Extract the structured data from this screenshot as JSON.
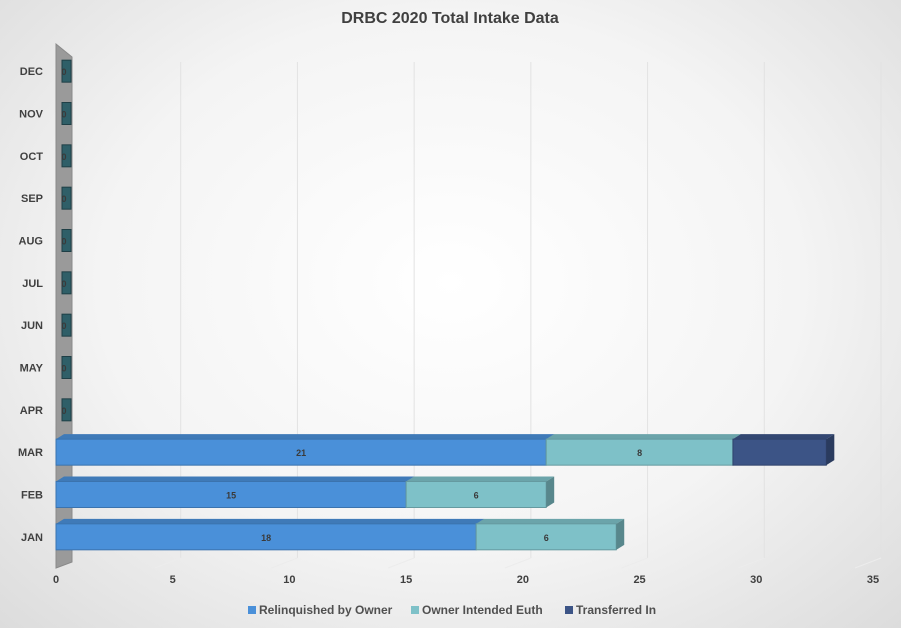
{
  "chart_data": {
    "type": "bar",
    "orientation": "horizontal",
    "stacked": true,
    "title": "DRBC 2020 Total Intake Data",
    "xlabel": "",
    "ylabel": "",
    "xlim": [
      0,
      35
    ],
    "x_ticks": [
      0,
      5,
      10,
      15,
      20,
      25,
      30,
      35
    ],
    "categories": [
      "JAN",
      "FEB",
      "MAR",
      "APR",
      "MAY",
      "JUN",
      "JUL",
      "AUG",
      "SEP",
      "OCT",
      "NOV",
      "DEC"
    ],
    "series": [
      {
        "name": "Relinquished by Owner",
        "color": "#4a90d9",
        "values": [
          18,
          15,
          21,
          0,
          0,
          0,
          0,
          0,
          0,
          0,
          0,
          0
        ]
      },
      {
        "name": "Owner Intended Euth",
        "color": "#7ec1c8",
        "values": [
          6,
          6,
          8,
          0,
          0,
          0,
          0,
          0,
          0,
          0,
          0,
          0
        ]
      },
      {
        "name": "Transferred In",
        "color": "#3c5486",
        "values": [
          0,
          0,
          4,
          0,
          0,
          0,
          0,
          0,
          0,
          0,
          0,
          0
        ]
      }
    ],
    "data_labels": [
      [
        "18",
        "6",
        ""
      ],
      [
        "15",
        "6",
        ""
      ],
      [
        "21",
        "8",
        ""
      ],
      [
        "0",
        "",
        ""
      ],
      [
        "0",
        "",
        ""
      ],
      [
        "0",
        "",
        ""
      ],
      [
        "0",
        "",
        ""
      ],
      [
        "0",
        "",
        ""
      ],
      [
        "0",
        "",
        ""
      ],
      [
        "0",
        "",
        ""
      ],
      [
        "0",
        "",
        ""
      ],
      [
        "0",
        "",
        ""
      ]
    ],
    "grid": true,
    "legend_position": "bottom",
    "style": "3d"
  }
}
